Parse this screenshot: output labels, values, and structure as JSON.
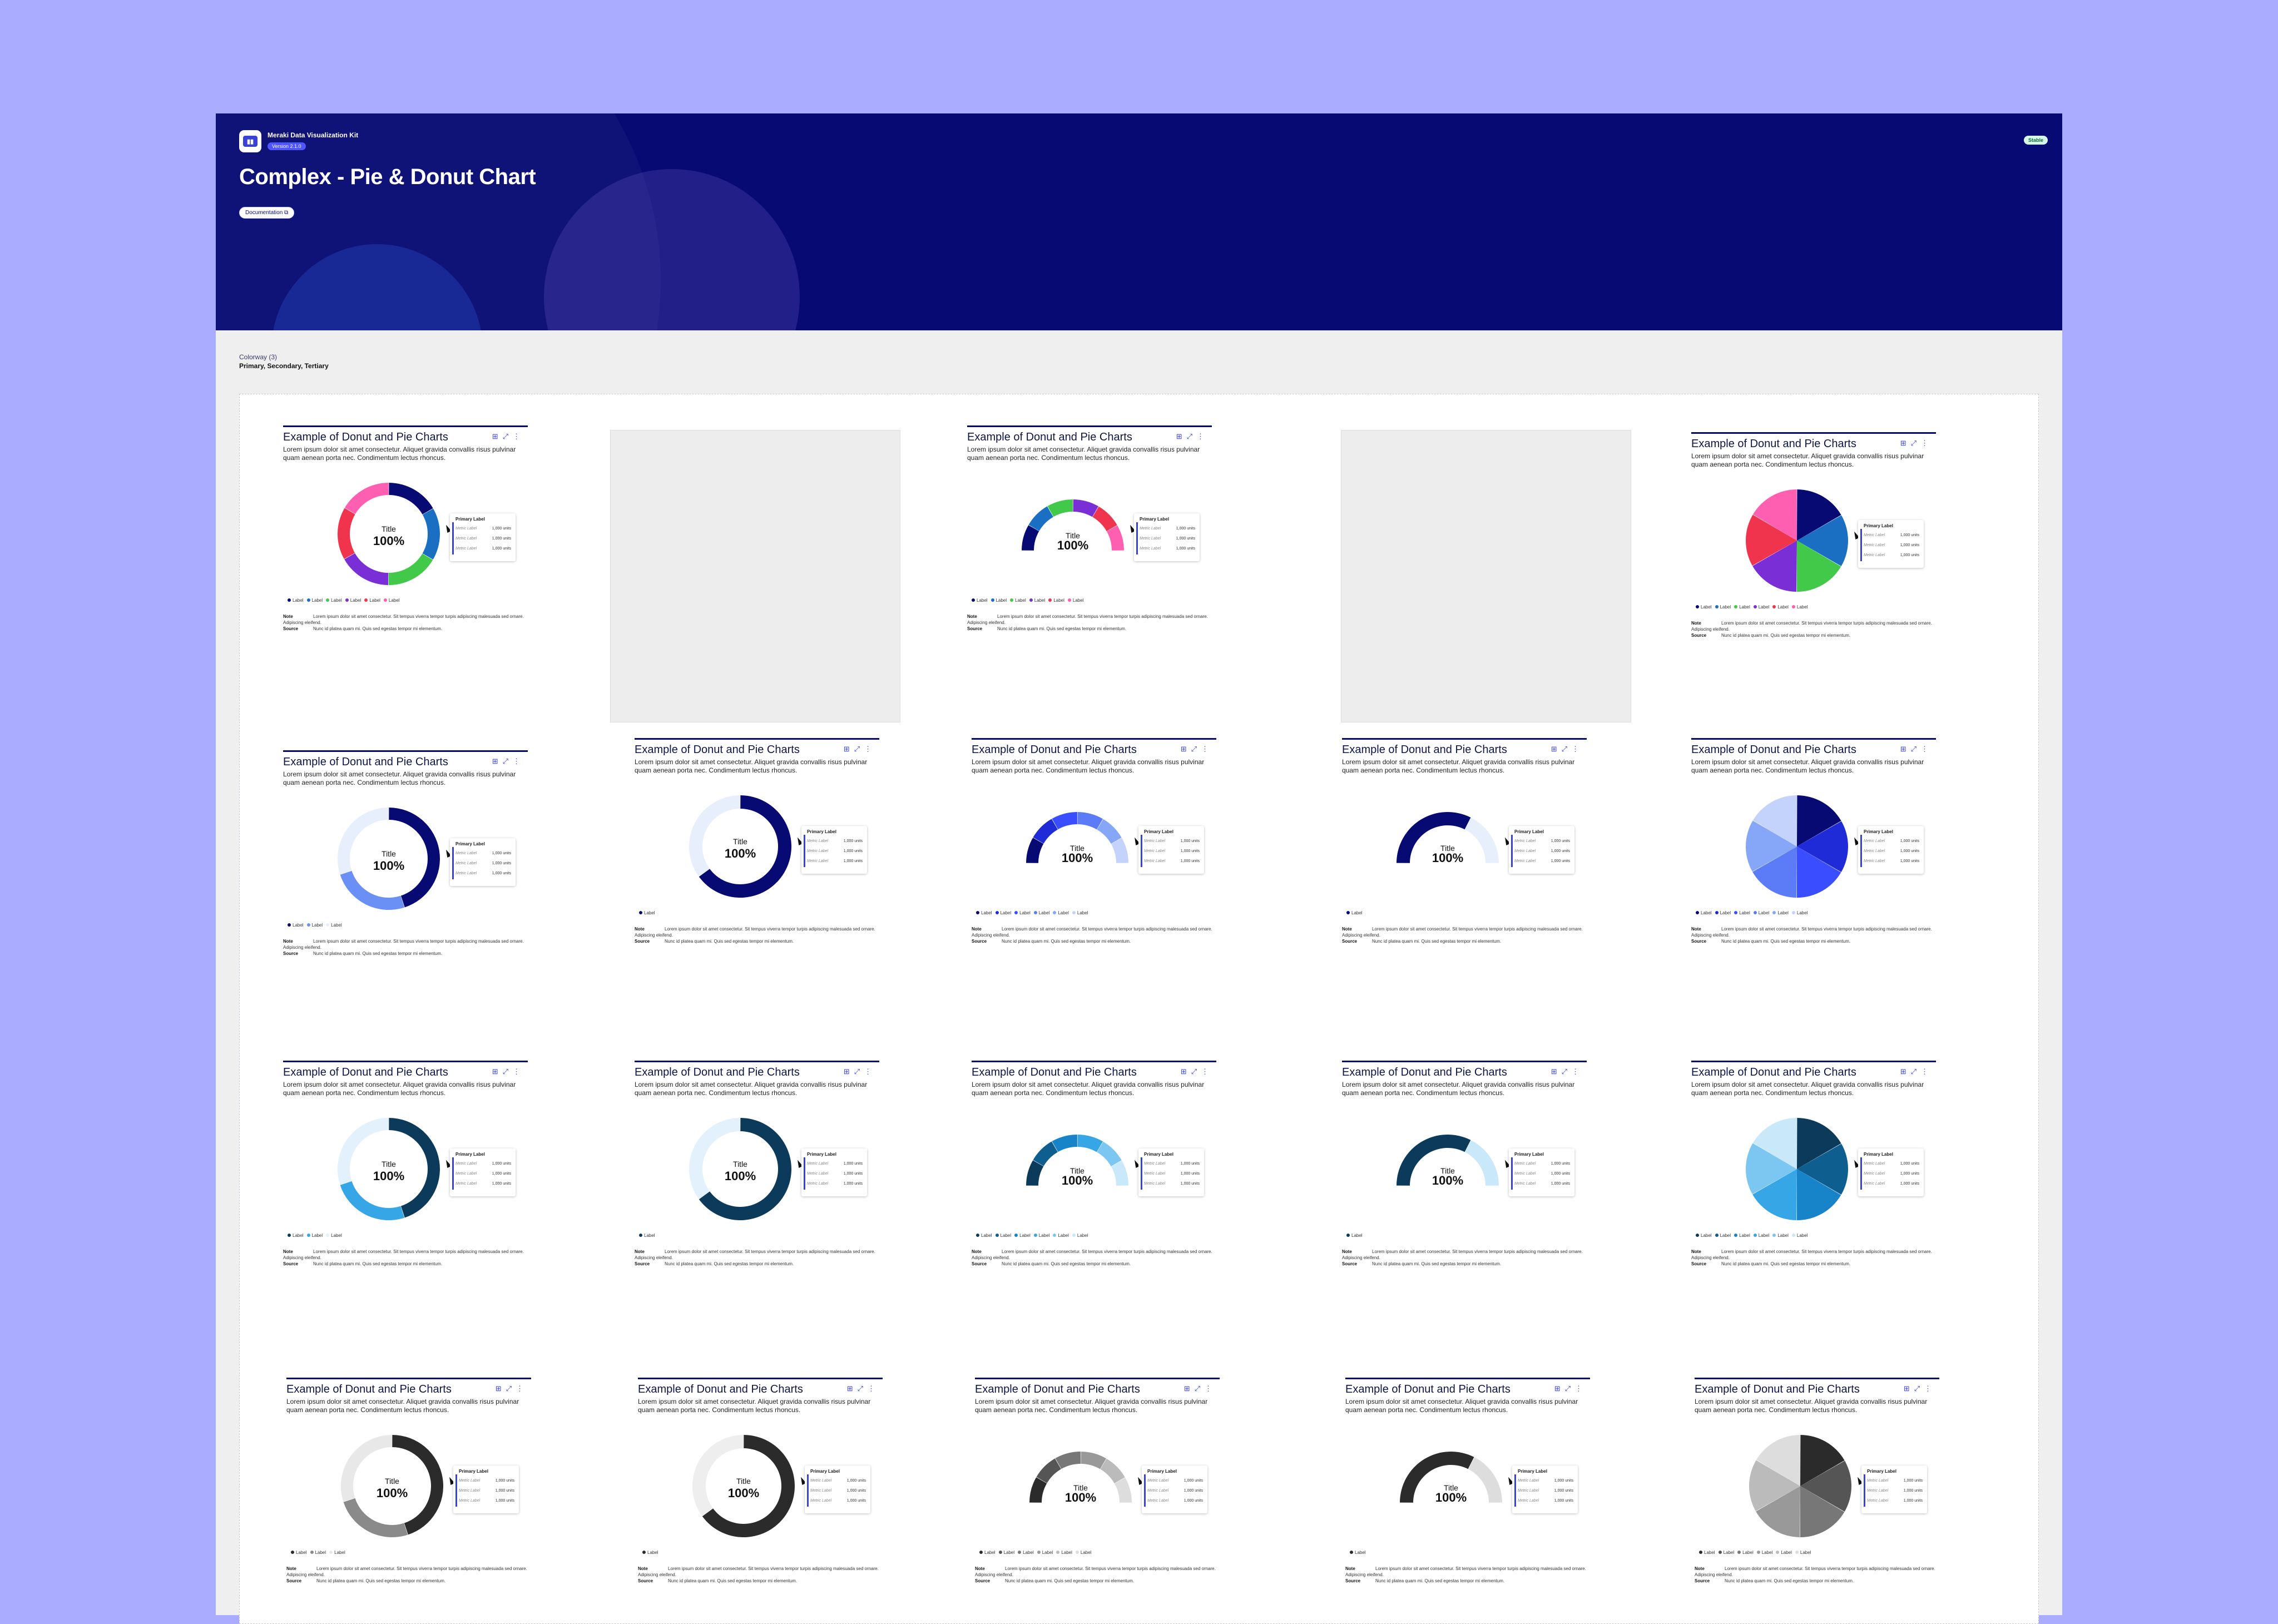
{
  "header": {
    "kit_name": "Meraki Data Visualization Kit",
    "version": "Version 2.1.0",
    "title": "Complex - Pie & Donut Chart",
    "doc_button": "Documentation",
    "status": "Stable"
  },
  "colorway": {
    "label": "Colorway (3)",
    "value": "Primary, Secondary, Tertiary"
  },
  "card_text": {
    "title": "Example of Donut and Pie Charts",
    "description": "Lorem ipsum dolor sit amet consectetur. Aliquet gravida convallis risus pulvinar quam aenean porta nec. Condimentum lectus rhoncus.",
    "center_title": "Title",
    "center_value": "100%",
    "tooltip_title": "Primary Label",
    "metric_label": "Metric Label",
    "metric_value": "1,000 units",
    "legend_label": "Label",
    "note_label": "Note",
    "note_text": "Lorem ipsum dolor sit amet consectetur. Sit tempus viverra tempor turpis adipiscing malesuada sed ornare. Adipiscing eleifend.",
    "source_label": "Source",
    "source_text": "Nunc id platea quam mi. Quis sed egestas tempor mi elementum."
  },
  "chart_data": [
    {
      "type": "pie",
      "variant": "donut",
      "palette": "categorical",
      "values": [
        16.7,
        16.7,
        16.7,
        16.7,
        16.7,
        16.5
      ],
      "colors": [
        "#070a73",
        "#1a6fc2",
        "#42c94a",
        "#7a2fd6",
        "#f0344e",
        "#ff5fb0"
      ]
    },
    {
      "type": "pie",
      "variant": "half-donut",
      "palette": "categorical",
      "values": [
        16.7,
        16.7,
        16.7,
        16.7,
        16.7,
        16.5
      ],
      "colors": [
        "#070a73",
        "#1a6fc2",
        "#42c94a",
        "#7a2fd6",
        "#f0344e",
        "#ff5fb0"
      ]
    },
    {
      "type": "pie",
      "variant": "pie",
      "palette": "categorical",
      "values": [
        16.7,
        16.7,
        16.7,
        16.7,
        16.7,
        16.5
      ],
      "colors": [
        "#070a73",
        "#1a6fc2",
        "#42c94a",
        "#7a2fd6",
        "#f0344e",
        "#ff5fb0"
      ]
    },
    {
      "type": "pie",
      "variant": "donut",
      "palette": "sequential-blue",
      "values": [
        45,
        25,
        30
      ],
      "colors": [
        "#070a73",
        "#6a8ff5",
        "#e7eefc"
      ]
    },
    {
      "type": "pie",
      "variant": "donut-single",
      "palette": "sequential-blue",
      "values": [
        65,
        35
      ],
      "colors": [
        "#070a73",
        "#e7eefc"
      ]
    },
    {
      "type": "pie",
      "variant": "half-donut",
      "palette": "sequential-blue",
      "values": [
        16.7,
        16.7,
        16.7,
        16.7,
        16.7,
        16.5
      ],
      "colors": [
        "#070a73",
        "#1f2bd6",
        "#3a4dff",
        "#5b7bf7",
        "#86a6f7",
        "#c4d3fb"
      ]
    },
    {
      "type": "pie",
      "variant": "half-donut-single",
      "palette": "sequential-blue",
      "values": [
        65,
        35
      ],
      "colors": [
        "#070a73",
        "#e7eefc"
      ]
    },
    {
      "type": "pie",
      "variant": "pie",
      "palette": "sequential-blue",
      "values": [
        16.7,
        16.7,
        16.7,
        16.7,
        16.7,
        16.5
      ],
      "colors": [
        "#070a73",
        "#1f2bd6",
        "#3a4dff",
        "#5b7bf7",
        "#86a6f7",
        "#c4d3fb"
      ]
    },
    {
      "type": "pie",
      "variant": "donut",
      "palette": "sequential-teal",
      "values": [
        45,
        25,
        30
      ],
      "colors": [
        "#0b3a5a",
        "#37a6e6",
        "#e2f1fb"
      ]
    },
    {
      "type": "pie",
      "variant": "donut-single",
      "palette": "sequential-teal",
      "values": [
        65,
        35
      ],
      "colors": [
        "#0b3a5a",
        "#e2f1fb"
      ]
    },
    {
      "type": "pie",
      "variant": "half-donut",
      "palette": "sequential-teal",
      "values": [
        16.7,
        16.7,
        16.7,
        16.7,
        16.7,
        16.5
      ],
      "colors": [
        "#0b3a5a",
        "#0e5e8f",
        "#1784c9",
        "#37a6e6",
        "#7cc7f2",
        "#c9e8fa"
      ]
    },
    {
      "type": "pie",
      "variant": "half-donut-single",
      "palette": "sequential-teal",
      "values": [
        65,
        35
      ],
      "colors": [
        "#0b3a5a",
        "#c9e8fa"
      ]
    },
    {
      "type": "pie",
      "variant": "pie",
      "palette": "sequential-teal",
      "values": [
        16.7,
        16.7,
        16.7,
        16.7,
        16.7,
        16.5
      ],
      "colors": [
        "#0b3a5a",
        "#0e5e8f",
        "#1784c9",
        "#37a6e6",
        "#7cc7f2",
        "#c9e8fa"
      ]
    },
    {
      "type": "pie",
      "variant": "donut",
      "palette": "grey",
      "values": [
        45,
        25,
        30
      ],
      "colors": [
        "#2b2b2b",
        "#8a8a8a",
        "#e8e8e8"
      ]
    },
    {
      "type": "pie",
      "variant": "donut-single",
      "palette": "grey",
      "values": [
        65,
        35
      ],
      "colors": [
        "#2b2b2b",
        "#eeeeee"
      ]
    },
    {
      "type": "pie",
      "variant": "half-donut",
      "palette": "grey",
      "values": [
        16.7,
        16.7,
        16.7,
        16.7,
        16.7,
        16.5
      ],
      "colors": [
        "#2b2b2b",
        "#555555",
        "#777777",
        "#999999",
        "#bbbbbb",
        "#dddddd"
      ]
    },
    {
      "type": "pie",
      "variant": "half-donut-single",
      "palette": "grey",
      "values": [
        65,
        35
      ],
      "colors": [
        "#2b2b2b",
        "#dddddd"
      ]
    },
    {
      "type": "pie",
      "variant": "pie",
      "palette": "grey",
      "values": [
        16.7,
        16.7,
        16.7,
        16.7,
        16.7,
        16.5
      ],
      "colors": [
        "#2b2b2b",
        "#555555",
        "#777777",
        "#999999",
        "#bbbbbb",
        "#dddddd"
      ]
    }
  ]
}
